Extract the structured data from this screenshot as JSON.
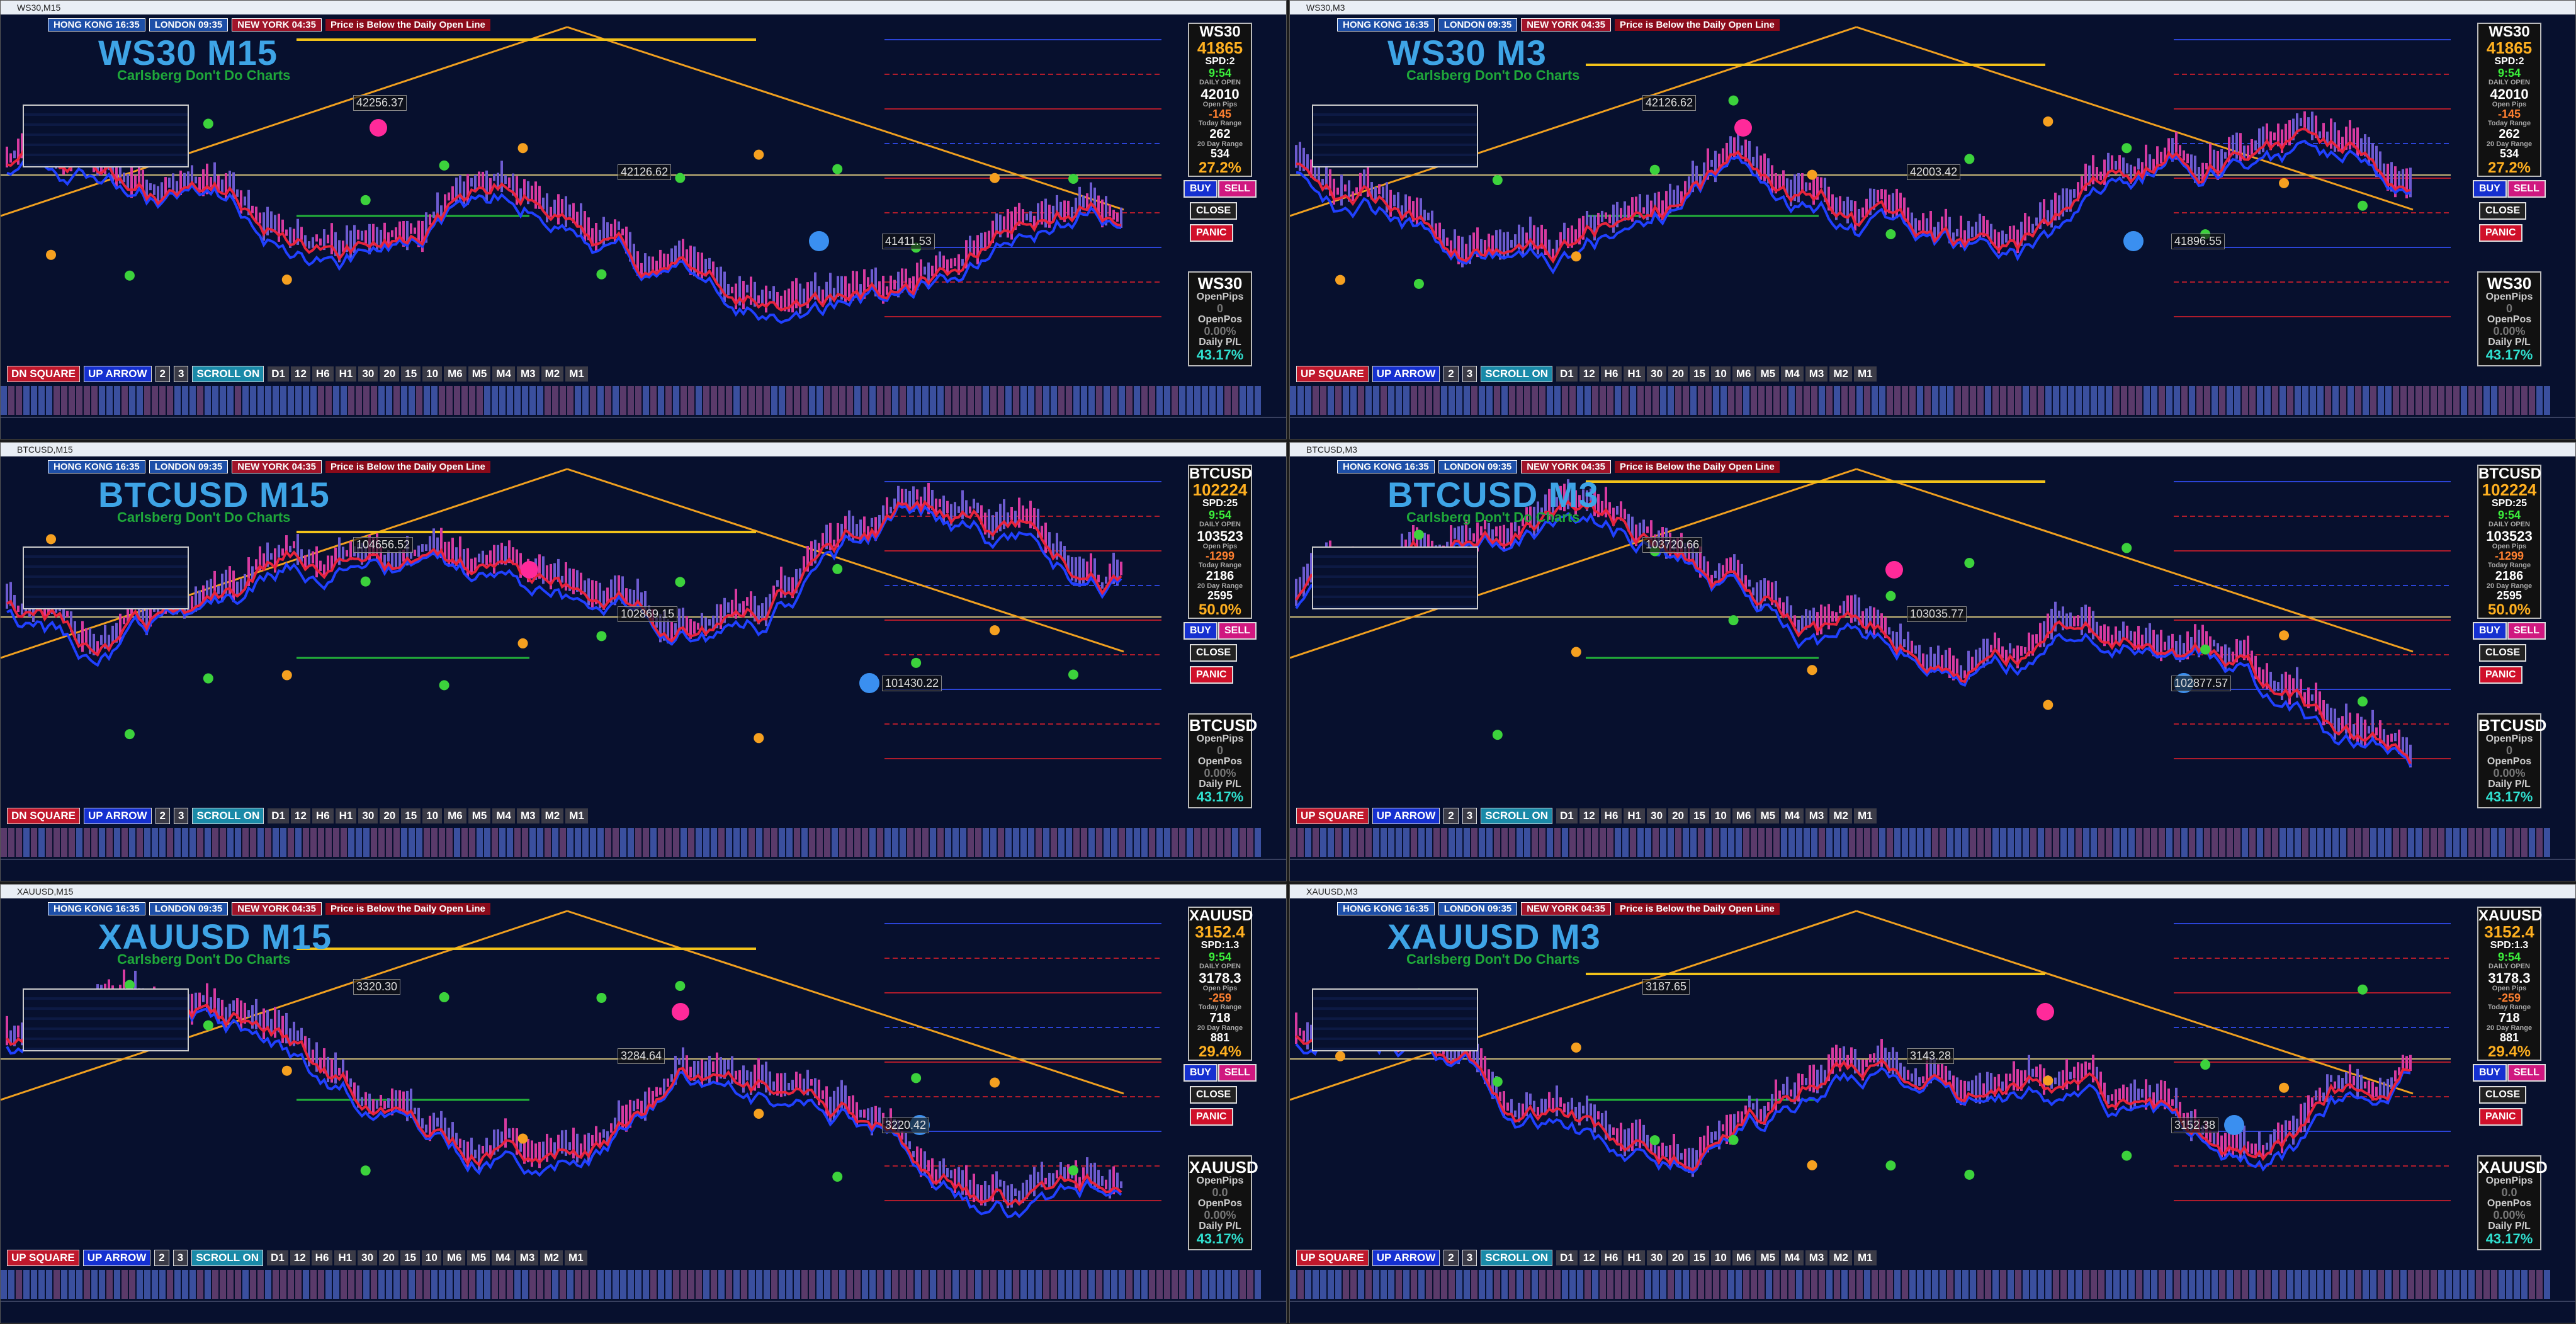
{
  "panels": [
    {
      "window_title": "WS30,M15",
      "chart_title": "WS30 M15",
      "subtitle": "Carlsberg Don't Do Charts",
      "clocks": [
        "HONG KONG 16:35",
        "LONDON 09:35",
        "NEW YORK 04:35"
      ],
      "alert": "Price is Below the Daily Open Line",
      "info": [
        "WS30",
        "41865",
        "SPD:2",
        "9:54",
        "DAILY OPEN",
        "42010",
        "Open Pips",
        "-145",
        "Today Range",
        "262",
        "20 Day Range",
        "534",
        "27.2%"
      ],
      "mode_buttons": [
        "DN SQUARE",
        "UP ARROW",
        "2",
        "3",
        "SCROLL ON"
      ],
      "price_tags": [
        "42256.37",
        "42126.62",
        "41411.53"
      ],
      "positions": [
        "WS30",
        "OpenPips",
        "0",
        "OpenPos",
        "0.00%",
        "Daily P/L",
        "43.17%"
      ]
    },
    {
      "window_title": "WS30,M3",
      "chart_title": "WS30 M3",
      "subtitle": "Carlsberg Don't Do Charts",
      "clocks": [
        "HONG KONG 16:35",
        "LONDON 09:35",
        "NEW YORK 04:35"
      ],
      "alert": "Price is Below the Daily Open Line",
      "info": [
        "WS30",
        "41865",
        "SPD:2",
        "9:54",
        "DAILY OPEN",
        "42010",
        "Open Pips",
        "-145",
        "Today Range",
        "262",
        "20 Day Range",
        "534",
        "27.2%"
      ],
      "mode_buttons": [
        "UP SQUARE",
        "UP ARROW",
        "2",
        "3",
        "SCROLL ON"
      ],
      "price_tags": [
        "42126.62",
        "42003.42",
        "41896.55"
      ],
      "positions": [
        "WS30",
        "OpenPips",
        "0",
        "OpenPos",
        "0.00%",
        "Daily P/L",
        "43.17%"
      ]
    },
    {
      "window_title": "BTCUSD,M15",
      "chart_title": "BTCUSD M15",
      "subtitle": "Carlsberg Don't Do Charts",
      "clocks": [
        "HONG KONG 16:35",
        "LONDON 09:35",
        "NEW YORK 04:35"
      ],
      "alert": "Price is Below the Daily Open Line",
      "info": [
        "BTCUSD",
        "102224",
        "SPD:25",
        "9:54",
        "DAILY OPEN",
        "103523",
        "Open Pips",
        "-1299",
        "Today Range",
        "2186",
        "20 Day Range",
        "2595",
        "50.0%"
      ],
      "mode_buttons": [
        "DN SQUARE",
        "UP ARROW",
        "2",
        "3",
        "SCROLL ON"
      ],
      "price_tags": [
        "104656.52",
        "102869.15",
        "101430.22"
      ],
      "positions": [
        "BTCUSD",
        "OpenPips",
        "0",
        "OpenPos",
        "0.00%",
        "Daily P/L",
        "43.17%"
      ]
    },
    {
      "window_title": "BTCUSD,M3",
      "chart_title": "BTCUSD M3",
      "subtitle": "Carlsberg Don't Do Charts",
      "clocks": [
        "HONG KONG 16:35",
        "LONDON 09:35",
        "NEW YORK 04:35"
      ],
      "alert": "Price is Below the Daily Open Line",
      "info": [
        "BTCUSD",
        "102224",
        "SPD:25",
        "9:54",
        "DAILY OPEN",
        "103523",
        "Open Pips",
        "-1299",
        "Today Range",
        "2186",
        "20 Day Range",
        "2595",
        "50.0%"
      ],
      "mode_buttons": [
        "UP SQUARE",
        "UP ARROW",
        "2",
        "3",
        "SCROLL ON"
      ],
      "price_tags": [
        "103720.66",
        "103035.77",
        "102877.57"
      ],
      "positions": [
        "BTCUSD",
        "OpenPips",
        "0",
        "OpenPos",
        "0.00%",
        "Daily P/L",
        "43.17%"
      ]
    },
    {
      "window_title": "XAUUSD,M15",
      "chart_title": "XAUUSD M15",
      "subtitle": "Carlsberg Don't Do Charts",
      "clocks": [
        "HONG KONG 16:35",
        "LONDON 09:35",
        "NEW YORK 04:35"
      ],
      "alert": "Price is Below the Daily Open Line",
      "info": [
        "XAUUSD",
        "3152.4",
        "SPD:1.3",
        "9:54",
        "DAILY OPEN",
        "3178.3",
        "Open Pips",
        "-259",
        "Today Range",
        "718",
        "20 Day Range",
        "881",
        "29.4%"
      ],
      "mode_buttons": [
        "UP SQUARE",
        "UP ARROW",
        "2",
        "3",
        "SCROLL ON"
      ],
      "price_tags": [
        "3320.30",
        "3284.64",
        "3220.42"
      ],
      "positions": [
        "XAUUSD",
        "OpenPips",
        "0.0",
        "OpenPos",
        "0.00%",
        "Daily P/L",
        "43.17%"
      ]
    },
    {
      "window_title": "XAUUSD,M3",
      "chart_title": "XAUUSD M3",
      "subtitle": "Carlsberg Don't Do Charts",
      "clocks": [
        "HONG KONG 16:35",
        "LONDON 09:35",
        "NEW YORK 04:35"
      ],
      "alert": "Price is Below the Daily Open Line",
      "info": [
        "XAUUSD",
        "3152.4",
        "SPD:1.3",
        "9:54",
        "DAILY OPEN",
        "3178.3",
        "Open Pips",
        "-259",
        "Today Range",
        "718",
        "20 Day Range",
        "881",
        "29.4%"
      ],
      "mode_buttons": [
        "UP SQUARE",
        "UP ARROW",
        "2",
        "3",
        "SCROLL ON"
      ],
      "price_tags": [
        "3187.65",
        "3143.28",
        "3152.38"
      ],
      "positions": [
        "XAUUSD",
        "OpenPips",
        "0.0",
        "OpenPos",
        "0.00%",
        "Daily P/L",
        "43.17%"
      ]
    }
  ],
  "trade_buttons": [
    "BUY",
    "SELL",
    "CLOSE",
    "PANIC"
  ],
  "timeframes": [
    "D1",
    "12",
    "H6",
    "H1",
    "30",
    "20",
    "15",
    "10",
    "M6",
    "M5",
    "M4",
    "M3",
    "M2",
    "M1"
  ]
}
